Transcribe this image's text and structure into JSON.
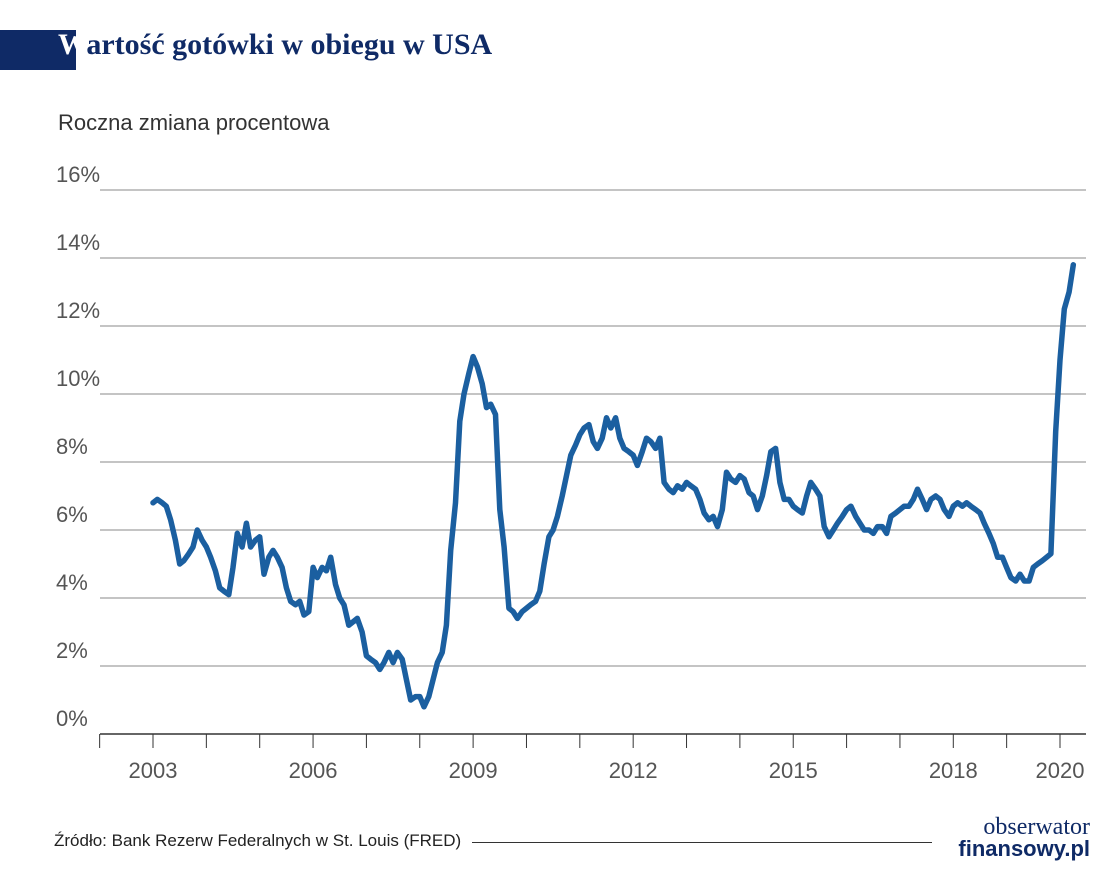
{
  "header": {
    "title_first": "W",
    "title_rest": "artość gotówki w obiegu w USA",
    "subtitle": "Roczna zmiana procentowa"
  },
  "footer": {
    "source": "Źródło: Bank Rezerw Federalnych w St. Louis (FRED)",
    "logo_line1": "obserwator",
    "logo_line2": "finansowy.pl"
  },
  "colors": {
    "brand": "#0f2a66",
    "line": "#1b5fa0",
    "grid": "#888888"
  },
  "chart_data": {
    "type": "line",
    "title": "Wartość gotówki w obiegu w USA",
    "subtitle": "Roczna zmiana procentowa",
    "xlabel": "",
    "ylabel": "",
    "xlim": [
      2002.0,
      2020.5
    ],
    "ylim": [
      0,
      16
    ],
    "y_ticks": [
      0,
      2,
      4,
      6,
      8,
      10,
      12,
      14,
      16
    ],
    "y_tick_labels": [
      "0%",
      "2%",
      "4%",
      "6%",
      "8%",
      "10%",
      "12%",
      "14%",
      "16%"
    ],
    "x_tick_labels": [
      "2003",
      "2006",
      "2009",
      "2012",
      "2015",
      "2018",
      "2020"
    ],
    "x_tick_positions": [
      2003,
      2006,
      2009,
      2012,
      2015,
      2018,
      2020
    ],
    "minor_ticks": [
      2002,
      2003,
      2004,
      2005,
      2006,
      2007,
      2008,
      2009,
      2010,
      2011,
      2012,
      2013,
      2014,
      2015,
      2016,
      2017,
      2018,
      2019,
      2020
    ],
    "grid": "horizontal",
    "series": [
      {
        "points": [
          [
            2003.0,
            6.8
          ],
          [
            2003.08,
            6.9
          ],
          [
            2003.17,
            6.8
          ],
          [
            2003.25,
            6.7
          ],
          [
            2003.33,
            6.3
          ],
          [
            2003.42,
            5.7
          ],
          [
            2003.5,
            5.0
          ],
          [
            2003.58,
            5.1
          ],
          [
            2003.67,
            5.3
          ],
          [
            2003.75,
            5.5
          ],
          [
            2003.83,
            6.0
          ],
          [
            2003.92,
            5.7
          ],
          [
            2004.0,
            5.5
          ],
          [
            2004.08,
            5.2
          ],
          [
            2004.17,
            4.8
          ],
          [
            2004.25,
            4.3
          ],
          [
            2004.33,
            4.2
          ],
          [
            2004.42,
            4.1
          ],
          [
            2004.5,
            4.9
          ],
          [
            2004.58,
            5.9
          ],
          [
            2004.67,
            5.5
          ],
          [
            2004.75,
            6.2
          ],
          [
            2004.83,
            5.5
          ],
          [
            2004.92,
            5.7
          ],
          [
            2005.0,
            5.8
          ],
          [
            2005.08,
            4.7
          ],
          [
            2005.17,
            5.2
          ],
          [
            2005.25,
            5.4
          ],
          [
            2005.33,
            5.2
          ],
          [
            2005.42,
            4.9
          ],
          [
            2005.5,
            4.3
          ],
          [
            2005.58,
            3.9
          ],
          [
            2005.67,
            3.8
          ],
          [
            2005.75,
            3.9
          ],
          [
            2005.83,
            3.5
          ],
          [
            2005.92,
            3.6
          ],
          [
            2006.0,
            4.9
          ],
          [
            2006.08,
            4.6
          ],
          [
            2006.17,
            4.9
          ],
          [
            2006.25,
            4.8
          ],
          [
            2006.33,
            5.2
          ],
          [
            2006.42,
            4.4
          ],
          [
            2006.5,
            4.0
          ],
          [
            2006.58,
            3.8
          ],
          [
            2006.67,
            3.2
          ],
          [
            2006.75,
            3.3
          ],
          [
            2006.83,
            3.4
          ],
          [
            2006.92,
            3.0
          ],
          [
            2007.0,
            2.3
          ],
          [
            2007.08,
            2.2
          ],
          [
            2007.17,
            2.1
          ],
          [
            2007.25,
            1.9
          ],
          [
            2007.33,
            2.1
          ],
          [
            2007.42,
            2.4
          ],
          [
            2007.5,
            2.1
          ],
          [
            2007.58,
            2.4
          ],
          [
            2007.67,
            2.2
          ],
          [
            2007.75,
            1.6
          ],
          [
            2007.83,
            1.0
          ],
          [
            2007.92,
            1.1
          ],
          [
            2008.0,
            1.1
          ],
          [
            2008.08,
            0.8
          ],
          [
            2008.17,
            1.1
          ],
          [
            2008.25,
            1.6
          ],
          [
            2008.33,
            2.1
          ],
          [
            2008.42,
            2.4
          ],
          [
            2008.5,
            3.2
          ],
          [
            2008.58,
            5.4
          ],
          [
            2008.67,
            6.8
          ],
          [
            2008.75,
            9.2
          ],
          [
            2008.83,
            10.0
          ],
          [
            2008.92,
            10.6
          ],
          [
            2009.0,
            11.1
          ],
          [
            2009.08,
            10.8
          ],
          [
            2009.17,
            10.3
          ],
          [
            2009.25,
            9.6
          ],
          [
            2009.33,
            9.7
          ],
          [
            2009.42,
            9.4
          ],
          [
            2009.5,
            6.6
          ],
          [
            2009.58,
            5.5
          ],
          [
            2009.67,
            3.7
          ],
          [
            2009.75,
            3.6
          ],
          [
            2009.83,
            3.4
          ],
          [
            2009.92,
            3.6
          ],
          [
            2010.0,
            3.7
          ],
          [
            2010.08,
            3.8
          ],
          [
            2010.17,
            3.9
          ],
          [
            2010.25,
            4.2
          ],
          [
            2010.33,
            5.0
          ],
          [
            2010.42,
            5.8
          ],
          [
            2010.5,
            6.0
          ],
          [
            2010.58,
            6.4
          ],
          [
            2010.67,
            7.0
          ],
          [
            2010.75,
            7.6
          ],
          [
            2010.83,
            8.2
          ],
          [
            2010.92,
            8.5
          ],
          [
            2011.0,
            8.8
          ],
          [
            2011.08,
            9.0
          ],
          [
            2011.17,
            9.1
          ],
          [
            2011.25,
            8.6
          ],
          [
            2011.33,
            8.4
          ],
          [
            2011.42,
            8.7
          ],
          [
            2011.5,
            9.3
          ],
          [
            2011.58,
            9.0
          ],
          [
            2011.67,
            9.3
          ],
          [
            2011.75,
            8.7
          ],
          [
            2011.83,
            8.4
          ],
          [
            2011.92,
            8.3
          ],
          [
            2012.0,
            8.2
          ],
          [
            2012.08,
            7.9
          ],
          [
            2012.17,
            8.3
          ],
          [
            2012.25,
            8.7
          ],
          [
            2012.33,
            8.6
          ],
          [
            2012.42,
            8.4
          ],
          [
            2012.5,
            8.7
          ],
          [
            2012.58,
            7.4
          ],
          [
            2012.67,
            7.2
          ],
          [
            2012.75,
            7.1
          ],
          [
            2012.83,
            7.3
          ],
          [
            2012.92,
            7.2
          ],
          [
            2013.0,
            7.4
          ],
          [
            2013.08,
            7.3
          ],
          [
            2013.17,
            7.2
          ],
          [
            2013.25,
            6.9
          ],
          [
            2013.33,
            6.5
          ],
          [
            2013.42,
            6.3
          ],
          [
            2013.5,
            6.4
          ],
          [
            2013.58,
            6.1
          ],
          [
            2013.67,
            6.6
          ],
          [
            2013.75,
            7.7
          ],
          [
            2013.83,
            7.5
          ],
          [
            2013.92,
            7.4
          ],
          [
            2014.0,
            7.6
          ],
          [
            2014.08,
            7.5
          ],
          [
            2014.17,
            7.1
          ],
          [
            2014.25,
            7.0
          ],
          [
            2014.33,
            6.6
          ],
          [
            2014.42,
            7.0
          ],
          [
            2014.5,
            7.6
          ],
          [
            2014.58,
            8.3
          ],
          [
            2014.67,
            8.4
          ],
          [
            2014.75,
            7.4
          ],
          [
            2014.83,
            6.9
          ],
          [
            2014.92,
            6.9
          ],
          [
            2015.0,
            6.7
          ],
          [
            2015.08,
            6.6
          ],
          [
            2015.17,
            6.5
          ],
          [
            2015.25,
            7.0
          ],
          [
            2015.33,
            7.4
          ],
          [
            2015.42,
            7.2
          ],
          [
            2015.5,
            7.0
          ],
          [
            2015.58,
            6.1
          ],
          [
            2015.67,
            5.8
          ],
          [
            2015.75,
            6.0
          ],
          [
            2015.83,
            6.2
          ],
          [
            2015.92,
            6.4
          ],
          [
            2016.0,
            6.6
          ],
          [
            2016.08,
            6.7
          ],
          [
            2016.17,
            6.4
          ],
          [
            2016.25,
            6.2
          ],
          [
            2016.33,
            6.0
          ],
          [
            2016.42,
            6.0
          ],
          [
            2016.5,
            5.9
          ],
          [
            2016.58,
            6.1
          ],
          [
            2016.67,
            6.1
          ],
          [
            2016.75,
            5.9
          ],
          [
            2016.83,
            6.4
          ],
          [
            2016.92,
            6.5
          ],
          [
            2017.0,
            6.6
          ],
          [
            2017.08,
            6.7
          ],
          [
            2017.17,
            6.7
          ],
          [
            2017.25,
            6.9
          ],
          [
            2017.33,
            7.2
          ],
          [
            2017.42,
            6.9
          ],
          [
            2017.5,
            6.6
          ],
          [
            2017.58,
            6.9
          ],
          [
            2017.67,
            7.0
          ],
          [
            2017.75,
            6.9
          ],
          [
            2017.83,
            6.6
          ],
          [
            2017.92,
            6.4
          ],
          [
            2018.0,
            6.7
          ],
          [
            2018.08,
            6.8
          ],
          [
            2018.17,
            6.7
          ],
          [
            2018.25,
            6.8
          ],
          [
            2018.33,
            6.7
          ],
          [
            2018.42,
            6.6
          ],
          [
            2018.5,
            6.5
          ],
          [
            2018.58,
            6.2
          ],
          [
            2018.67,
            5.9
          ],
          [
            2018.75,
            5.6
          ],
          [
            2018.83,
            5.2
          ],
          [
            2018.92,
            5.2
          ],
          [
            2019.0,
            4.9
          ],
          [
            2019.08,
            4.6
          ],
          [
            2019.17,
            4.5
          ],
          [
            2019.25,
            4.7
          ],
          [
            2019.33,
            4.5
          ],
          [
            2019.42,
            4.5
          ],
          [
            2019.5,
            4.9
          ],
          [
            2019.58,
            5.0
          ],
          [
            2019.67,
            5.1
          ],
          [
            2019.75,
            5.2
          ],
          [
            2019.83,
            5.3
          ],
          [
            2019.92,
            8.9
          ],
          [
            2020.0,
            11.0
          ],
          [
            2020.08,
            12.5
          ],
          [
            2020.17,
            13.0
          ],
          [
            2020.25,
            13.8
          ]
        ]
      }
    ]
  }
}
